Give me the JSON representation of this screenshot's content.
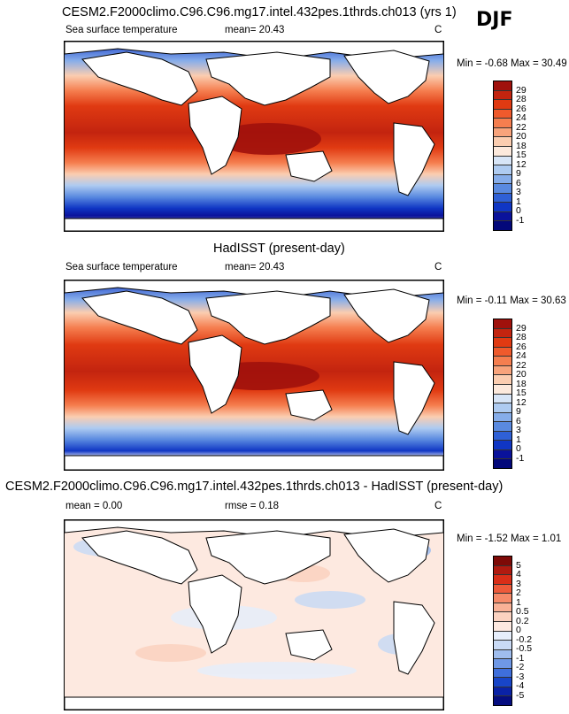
{
  "season": "DJF",
  "panels": [
    {
      "title": "CESM2.F2000climo.C96.C96.mg17.intel.432pes.1thrds.ch013 (yrs 1)",
      "left_label": "Sea surface temperature",
      "center_label": "mean=  20.43",
      "units": "C",
      "minmax": "Min =  -0.68 Max =  30.49",
      "colorbar_labels": [
        "29",
        "28",
        "26",
        "24",
        "22",
        "20",
        "18",
        "15",
        "12",
        "9",
        "6",
        "3",
        "1",
        "0",
        "-1"
      ],
      "colorbar_colors": [
        "#a0110c",
        "#c3240f",
        "#e03a12",
        "#ef5a2c",
        "#f57e4f",
        "#f8a37b",
        "#fbcdb0",
        "#fce9dc",
        "#d7e5f7",
        "#aecbf1",
        "#86adea",
        "#5a8ae0",
        "#2f60d6",
        "#1036c4",
        "#0a129b",
        "#03087a"
      ]
    },
    {
      "title": "HadISST (present-day)",
      "left_label": "Sea surface temperature",
      "center_label": "mean=  20.43",
      "units": "C",
      "minmax": "Min =  -0.11 Max =  30.63",
      "colorbar_labels": [
        "29",
        "28",
        "26",
        "24",
        "22",
        "20",
        "18",
        "15",
        "12",
        "9",
        "6",
        "3",
        "1",
        "0",
        "-1"
      ],
      "colorbar_colors": [
        "#a0110c",
        "#c3240f",
        "#e03a12",
        "#ef5a2c",
        "#f57e4f",
        "#f8a37b",
        "#fbcdb0",
        "#fce9dc",
        "#d7e5f7",
        "#aecbf1",
        "#86adea",
        "#5a8ae0",
        "#2f60d6",
        "#1036c4",
        "#0a129b",
        "#03087a"
      ]
    },
    {
      "title": "CESM2.F2000climo.C96.C96.mg17.intel.432pes.1thrds.ch013 - HadISST (present-day)",
      "left_label": "mean =   0.00",
      "center_label": "rmse =   0.18",
      "units": "C",
      "minmax": "Min =  -1.52 Max =   1.01",
      "colorbar_labels": [
        "5",
        "4",
        "3",
        "2",
        "1",
        "0.5",
        "0.2",
        "0",
        "-0.2",
        "-0.5",
        "-1",
        "-2",
        "-3",
        "-4",
        "-5"
      ],
      "colorbar_colors": [
        "#7e0a07",
        "#b01a10",
        "#d92e18",
        "#ee5a3a",
        "#f68a69",
        "#f9b196",
        "#fbd2c0",
        "#fde9e0",
        "#e6eefb",
        "#c9daf5",
        "#9fbdee",
        "#6f98e6",
        "#3f6fdc",
        "#1845c8",
        "#0a22a6",
        "#050d80"
      ]
    }
  ]
}
